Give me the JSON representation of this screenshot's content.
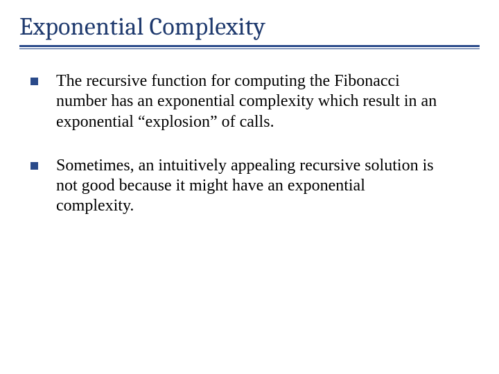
{
  "slide": {
    "title": "Exponential Complexity",
    "title_color": "#1f3a6e",
    "title_fontsize": 36,
    "rule_color": "#2a4a8a",
    "bullet_marker_color": "#2a4a8a",
    "bullet_marker_size": 11,
    "body_fontsize": 24,
    "body_color": "#000000",
    "background_color": "#ffffff",
    "bullets": [
      "The recursive function for computing the Fibonacci number has an exponential complexity which result in an exponential “explosion” of calls.",
      "Sometimes, an intuitively appealing recursive solution is not good because it might have an exponential complexity."
    ]
  }
}
